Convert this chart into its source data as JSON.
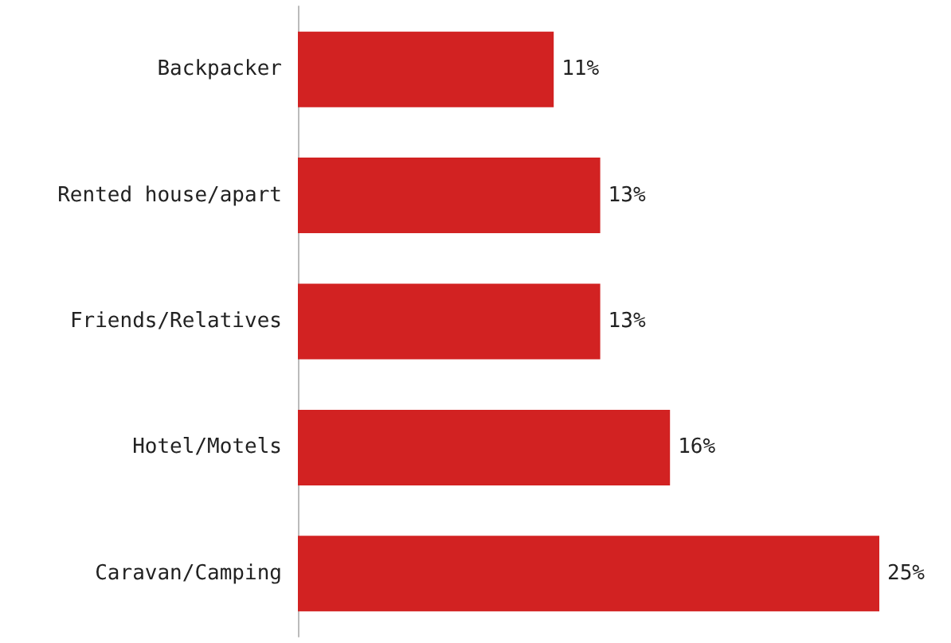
{
  "chart_data": {
    "type": "bar",
    "orientation": "horizontal",
    "categories": [
      "Backpacker",
      "Rented house/apart",
      "Friends/Relatives",
      "Hotel/Motels",
      "Caravan/Camping"
    ],
    "values": [
      11,
      13,
      13,
      16,
      25
    ],
    "value_labels": [
      "11%",
      "13%",
      "13%",
      "16%",
      "25%"
    ],
    "color": "#d22222"
  }
}
